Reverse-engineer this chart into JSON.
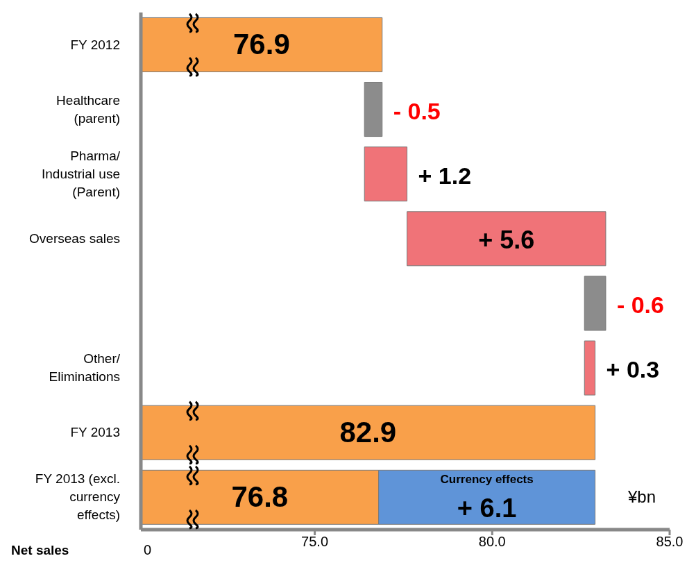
{
  "chart_data": {
    "type": "bar",
    "orientation": "horizontal",
    "xlabel": "Net sales",
    "categories": [
      "FY 2012",
      "Healthcare (parent)",
      "Pharma/ Industrial use (Parent)",
      "Overseas sales",
      null,
      "Other/ Eliminations",
      "FY 2013",
      "FY 2013 (excl. currency effects)"
    ],
    "series": [
      {
        "base": [
          null,
          76.9,
          76.4,
          77.6,
          83.2,
          82.6,
          null,
          null
        ],
        "colors": [
          "#f9a04a",
          "#8c8c8c",
          "#f07378",
          "#f07378",
          "#8c8c8c",
          "#f07378",
          "#f9a04a",
          "#f9a04a"
        ],
        "values": [
          76.9,
          -0.5,
          1.2,
          5.6,
          -0.6,
          0.3,
          82.9,
          76.8
        ],
        "value_labels": [
          "76.9",
          "- 0.5",
          "+ 1.2",
          "+ 5.6",
          "- 0.6",
          "+ 0.3",
          "82.9",
          "76.8"
        ]
      },
      {
        "name": "Currency effects",
        "color": "#5f94d8",
        "base": [
          null,
          null,
          null,
          null,
          null,
          null,
          null,
          76.8
        ],
        "values": [
          null,
          null,
          null,
          null,
          null,
          null,
          null,
          6.1
        ],
        "value_labels": [
          null,
          null,
          null,
          null,
          null,
          null,
          null,
          "+ 6.1"
        ]
      }
    ],
    "xlim": [
      70.1,
      85
    ],
    "xticks": [
      {
        "value": 75,
        "label": "75.0"
      },
      {
        "value": 80,
        "label": "80.0"
      },
      {
        "value": 85,
        "label": "85.0"
      }
    ],
    "annotations": [
      "0",
      "¥bn"
    ],
    "grid": false,
    "legend": false
  }
}
